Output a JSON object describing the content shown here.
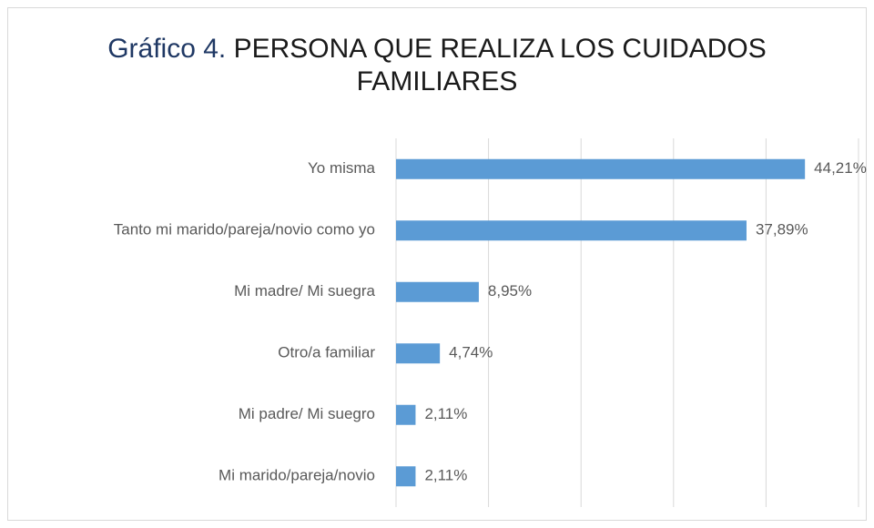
{
  "chart_data": {
    "type": "hbar",
    "title": {
      "number": "Gráfico 4.",
      "text": "PERSONA QUE REALIZA LOS CUIDADOS FAMILIARES"
    },
    "categories": [
      "Yo misma",
      "Tanto mi marido/pareja/novio como yo",
      "Mi madre/ Mi suegra",
      "Otro/a familiar",
      "Mi padre/ Mi suegro",
      "Mi marido/pareja/novio"
    ],
    "values": [
      44.21,
      37.89,
      8.95,
      4.74,
      2.11,
      2.11
    ],
    "value_labels": [
      "44,21%",
      "37,89%",
      "8,95%",
      "4,74%",
      "2,11%",
      "2,11%"
    ],
    "color": "#5b9bd5",
    "xlim": [
      0,
      50
    ],
    "xticks": [
      0,
      10,
      20,
      30,
      40,
      50
    ],
    "grid": true
  }
}
